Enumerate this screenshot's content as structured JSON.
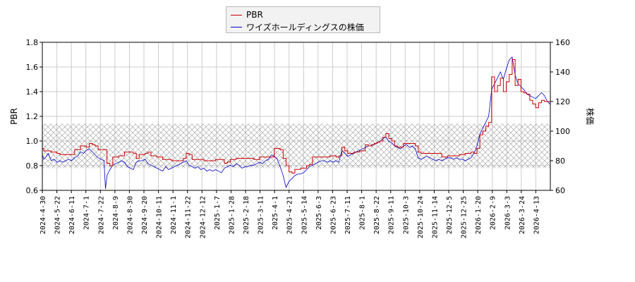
{
  "chart_data": {
    "type": "line",
    "title": "",
    "xlabel": "",
    "ylabel": "PBR",
    "y2label": "株価",
    "ylim": [
      0.6,
      1.8
    ],
    "y2lim": [
      60,
      160
    ],
    "yticks": [
      "0.6",
      "0.8",
      "1.0",
      "1.2",
      "1.4",
      "1.6",
      "1.8"
    ],
    "y2ticks": [
      "60",
      "80",
      "100",
      "120",
      "140",
      "160"
    ],
    "grid": true,
    "legend_position": "top-center",
    "band": {
      "y_from": 0.78,
      "y_to": 1.14,
      "pattern": "crosshatch"
    },
    "x_ticks": [
      "2024-4-30",
      "2024-5-22",
      "2024-6-11",
      "2024-7-1",
      "2024-7-22",
      "2024-8-9",
      "2024-8-30",
      "2024-9-20",
      "2024-10-11",
      "2024-11-1",
      "2024-11-22",
      "2024-12-12",
      "2025-1-7",
      "2025-1-28",
      "2025-2-18",
      "2025-3-11",
      "2025-4-1",
      "2025-4-21",
      "2025-5-14",
      "2025-6-3",
      "2025-6-23",
      "2025-7-11",
      "2025-8-1",
      "2025-8-22",
      "2025-9-11",
      "2025-10-3",
      "2025-10-24",
      "2025-11-14",
      "2025-12-5",
      "2025-12-25",
      "2026-1-20",
      "2026-2-9",
      "2026-3-3",
      "2026-3-24",
      "2026-4-13"
    ],
    "series": [
      {
        "name": "PBR",
        "color": "#cc0000",
        "axis": "left",
        "points": [
          [
            0,
            0.94
          ],
          [
            0.5,
            0.92
          ],
          [
            3,
            0.91
          ],
          [
            5,
            0.9
          ],
          [
            6,
            0.89
          ],
          [
            8,
            0.89
          ],
          [
            10,
            0.89
          ],
          [
            11,
            0.93
          ],
          [
            12,
            0.93
          ],
          [
            13,
            0.96
          ],
          [
            15,
            0.95
          ],
          [
            16,
            0.98
          ],
          [
            17,
            0.97
          ],
          [
            18,
            0.96
          ],
          [
            19,
            0.93
          ],
          [
            21,
            0.93
          ],
          [
            22,
            0.82
          ],
          [
            23,
            0.8
          ],
          [
            24,
            0.87
          ],
          [
            26,
            0.88
          ],
          [
            28,
            0.91
          ],
          [
            31,
            0.9
          ],
          [
            32,
            0.86
          ],
          [
            33,
            0.89
          ],
          [
            35,
            0.9
          ],
          [
            36,
            0.91
          ],
          [
            37,
            0.88
          ],
          [
            39,
            0.87
          ],
          [
            41,
            0.85
          ],
          [
            44,
            0.84
          ],
          [
            46,
            0.84
          ],
          [
            48,
            0.86
          ],
          [
            49,
            0.9
          ],
          [
            50,
            0.89
          ],
          [
            51,
            0.85
          ],
          [
            53,
            0.85
          ],
          [
            55,
            0.84
          ],
          [
            57,
            0.84
          ],
          [
            59,
            0.85
          ],
          [
            61,
            0.85
          ],
          [
            62,
            0.82
          ],
          [
            63,
            0.83
          ],
          [
            64,
            0.85
          ],
          [
            66,
            0.86
          ],
          [
            68,
            0.86
          ],
          [
            70,
            0.86
          ],
          [
            72,
            0.85
          ],
          [
            74,
            0.87
          ],
          [
            76,
            0.87
          ],
          [
            78,
            0.87
          ],
          [
            79,
            0.94
          ],
          [
            81,
            0.93
          ],
          [
            82,
            0.86
          ],
          [
            83,
            0.8
          ],
          [
            84,
            0.75
          ],
          [
            85,
            0.74
          ],
          [
            86,
            0.77
          ],
          [
            88,
            0.78
          ],
          [
            90,
            0.8
          ],
          [
            91,
            0.81
          ],
          [
            92,
            0.87
          ],
          [
            94,
            0.87
          ],
          [
            96,
            0.87
          ],
          [
            98,
            0.88
          ],
          [
            100,
            0.87
          ],
          [
            101,
            0.88
          ],
          [
            102,
            0.95
          ],
          [
            103,
            0.92
          ],
          [
            104,
            0.9
          ],
          [
            106,
            0.91
          ],
          [
            108,
            0.92
          ],
          [
            110,
            0.97
          ],
          [
            111,
            0.96
          ],
          [
            112,
            0.97
          ],
          [
            113,
            0.98
          ],
          [
            114,
            0.99
          ],
          [
            115,
            1.0
          ],
          [
            116,
            1.03
          ],
          [
            117,
            1.06
          ],
          [
            118,
            1.02
          ],
          [
            119,
            1.0
          ],
          [
            120,
            0.96
          ],
          [
            121,
            0.95
          ],
          [
            123,
            0.98
          ],
          [
            126,
            0.98
          ],
          [
            127,
            0.96
          ],
          [
            128,
            0.91
          ],
          [
            129,
            0.9
          ],
          [
            131,
            0.9
          ],
          [
            133,
            0.9
          ],
          [
            135,
            0.9
          ],
          [
            136,
            0.87
          ],
          [
            138,
            0.88
          ],
          [
            140,
            0.88
          ],
          [
            142,
            0.89
          ],
          [
            144,
            0.9
          ],
          [
            145,
            0.9
          ],
          [
            146,
            0.91
          ],
          [
            147,
            0.9
          ],
          [
            148,
            0.94
          ],
          [
            149,
            1.05
          ],
          [
            150,
            1.08
          ],
          [
            151,
            1.12
          ],
          [
            152,
            1.15
          ],
          [
            153,
            1.52
          ],
          [
            154,
            1.4
          ],
          [
            155,
            1.45
          ],
          [
            156,
            1.51
          ],
          [
            157,
            1.4
          ],
          [
            158,
            1.48
          ],
          [
            159,
            1.54
          ],
          [
            160,
            1.66
          ],
          [
            161,
            1.45
          ],
          [
            162,
            1.5
          ],
          [
            163,
            1.4
          ],
          [
            164,
            1.39
          ],
          [
            165,
            1.38
          ],
          [
            166,
            1.33
          ],
          [
            167,
            1.3
          ],
          [
            168,
            1.27
          ],
          [
            169,
            1.31
          ],
          [
            170,
            1.33
          ],
          [
            171,
            1.32
          ],
          [
            172,
            1.32
          ],
          [
            173,
            1.32
          ]
        ]
      },
      {
        "name": "ワイズホールディングスの株価",
        "color": "#0000cc",
        "axis": "right",
        "points": [
          [
            0,
            84
          ],
          [
            0.5,
            81
          ],
          [
            1,
            82
          ],
          [
            2,
            85
          ],
          [
            3,
            80
          ],
          [
            4,
            81
          ],
          [
            5,
            79
          ],
          [
            6,
            80
          ],
          [
            7,
            79
          ],
          [
            8,
            80
          ],
          [
            9,
            81
          ],
          [
            10,
            80
          ],
          [
            11,
            82
          ],
          [
            12,
            83
          ],
          [
            13,
            86
          ],
          [
            14,
            85
          ],
          [
            15,
            87
          ],
          [
            16,
            88
          ],
          [
            17,
            86
          ],
          [
            18,
            84
          ],
          [
            19,
            82
          ],
          [
            20,
            81
          ],
          [
            21,
            80
          ],
          [
            21.5,
            61
          ],
          [
            22,
            70
          ],
          [
            23,
            74
          ],
          [
            24,
            77
          ],
          [
            25,
            78
          ],
          [
            26,
            79
          ],
          [
            27,
            80
          ],
          [
            28,
            79
          ],
          [
            29,
            76
          ],
          [
            30,
            75
          ],
          [
            31,
            74
          ],
          [
            32,
            79
          ],
          [
            33,
            80
          ],
          [
            34,
            80
          ],
          [
            35,
            81
          ],
          [
            36,
            78
          ],
          [
            37,
            77
          ],
          [
            38,
            76
          ],
          [
            39,
            75
          ],
          [
            40,
            74
          ],
          [
            41,
            73
          ],
          [
            42,
            76
          ],
          [
            43,
            74
          ],
          [
            44,
            75
          ],
          [
            45,
            76
          ],
          [
            46,
            77
          ],
          [
            47,
            78
          ],
          [
            48,
            79
          ],
          [
            49,
            80
          ],
          [
            50,
            77
          ],
          [
            51,
            76
          ],
          [
            52,
            75
          ],
          [
            53,
            76
          ],
          [
            54,
            74
          ],
          [
            55,
            75
          ],
          [
            56,
            73
          ],
          [
            57,
            74
          ],
          [
            58,
            73
          ],
          [
            59,
            74
          ],
          [
            60,
            73
          ],
          [
            61,
            72
          ],
          [
            62,
            75
          ],
          [
            63,
            76
          ],
          [
            64,
            77
          ],
          [
            65,
            76
          ],
          [
            66,
            78
          ],
          [
            67,
            77
          ],
          [
            68,
            75
          ],
          [
            69,
            76
          ],
          [
            70,
            76
          ],
          [
            71,
            77
          ],
          [
            72,
            77
          ],
          [
            73,
            78
          ],
          [
            74,
            79
          ],
          [
            75,
            78
          ],
          [
            76,
            80
          ],
          [
            77,
            81
          ],
          [
            78,
            84
          ],
          [
            79,
            83
          ],
          [
            80,
            81
          ],
          [
            81,
            76
          ],
          [
            82,
            70
          ],
          [
            83,
            62
          ],
          [
            84,
            66
          ],
          [
            85,
            68
          ],
          [
            86,
            70
          ],
          [
            87,
            71
          ],
          [
            88,
            71
          ],
          [
            89,
            72
          ],
          [
            90,
            74
          ],
          [
            91,
            76
          ],
          [
            92,
            77
          ],
          [
            93,
            78
          ],
          [
            94,
            79
          ],
          [
            95,
            80
          ],
          [
            96,
            80
          ],
          [
            97,
            79
          ],
          [
            98,
            80
          ],
          [
            99,
            79
          ],
          [
            100,
            80
          ],
          [
            101,
            79
          ],
          [
            102,
            87
          ],
          [
            103,
            85
          ],
          [
            104,
            83
          ],
          [
            105,
            84
          ],
          [
            106,
            85
          ],
          [
            107,
            86
          ],
          [
            108,
            87
          ],
          [
            109,
            88
          ],
          [
            110,
            89
          ],
          [
            111,
            90
          ],
          [
            112,
            90
          ],
          [
            113,
            91
          ],
          [
            114,
            92
          ],
          [
            115,
            93
          ],
          [
            116,
            95
          ],
          [
            117,
            96
          ],
          [
            118,
            93
          ],
          [
            119,
            92
          ],
          [
            120,
            90
          ],
          [
            121,
            89
          ],
          [
            122,
            88
          ],
          [
            123,
            90
          ],
          [
            124,
            91
          ],
          [
            125,
            89
          ],
          [
            126,
            90
          ],
          [
            127,
            88
          ],
          [
            128,
            82
          ],
          [
            129,
            81
          ],
          [
            130,
            82
          ],
          [
            131,
            83
          ],
          [
            132,
            82
          ],
          [
            133,
            81
          ],
          [
            134,
            80
          ],
          [
            135,
            81
          ],
          [
            136,
            80
          ],
          [
            137,
            81
          ],
          [
            138,
            82
          ],
          [
            139,
            82
          ],
          [
            140,
            81
          ],
          [
            141,
            82
          ],
          [
            142,
            81
          ],
          [
            143,
            81
          ],
          [
            144,
            80
          ],
          [
            145,
            81
          ],
          [
            146,
            82
          ],
          [
            147,
            85
          ],
          [
            148,
            90
          ],
          [
            149,
            98
          ],
          [
            150,
            102
          ],
          [
            151,
            106
          ],
          [
            152,
            110
          ],
          [
            153,
            128
          ],
          [
            154,
            132
          ],
          [
            155,
            136
          ],
          [
            156,
            140
          ],
          [
            157,
            135
          ],
          [
            158,
            142
          ],
          [
            159,
            148
          ],
          [
            160,
            150
          ],
          [
            161,
            138
          ],
          [
            162,
            132
          ],
          [
            163,
            130
          ],
          [
            164,
            128
          ],
          [
            165,
            125
          ],
          [
            166,
            124
          ],
          [
            167,
            123
          ],
          [
            168,
            122
          ],
          [
            169,
            124
          ],
          [
            170,
            126
          ],
          [
            171,
            124
          ],
          [
            172,
            120
          ],
          [
            173,
            118
          ]
        ]
      }
    ]
  }
}
